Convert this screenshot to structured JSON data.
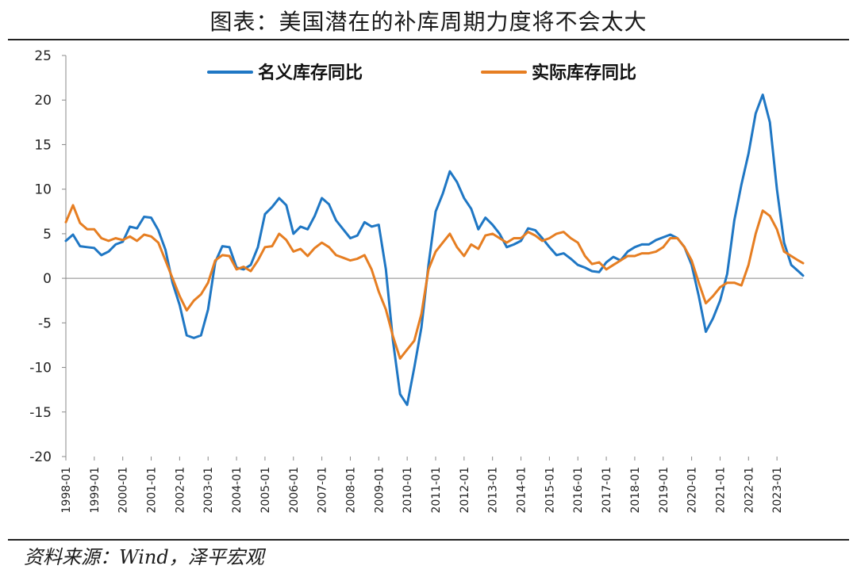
{
  "title": "图表：美国潜在的补库周期力度将不会太大",
  "source": "资料来源：Wind，泽平宏观",
  "chart_data": {
    "type": "line",
    "x_start": "1998-01",
    "x_end": "2023-12",
    "xticks": [
      "1998-01",
      "1999-01",
      "2000-01",
      "2001-01",
      "2002-01",
      "2003-01",
      "2004-01",
      "2005-01",
      "2006-01",
      "2007-01",
      "2008-01",
      "2009-01",
      "2010-01",
      "2011-01",
      "2012-01",
      "2013-01",
      "2014-01",
      "2015-01",
      "2016-01",
      "2017-01",
      "2018-01",
      "2019-01",
      "2020-01",
      "2021-01",
      "2022-01",
      "2023-01"
    ],
    "yticks": [
      25,
      20,
      15,
      10,
      5,
      0,
      -5,
      -10,
      -15,
      -20
    ],
    "ylim": [
      -20,
      25
    ],
    "legend_position": "top",
    "series": [
      {
        "name": "名义库存同比",
        "color": "#1f77c4",
        "points": [
          [
            "1998-01",
            4.2
          ],
          [
            "1998-04",
            4.9
          ],
          [
            "1998-07",
            3.6
          ],
          [
            "1998-10",
            3.5
          ],
          [
            "1999-01",
            3.4
          ],
          [
            "1999-04",
            2.6
          ],
          [
            "1999-07",
            3.0
          ],
          [
            "1999-10",
            3.8
          ],
          [
            "2000-01",
            4.1
          ],
          [
            "2000-04",
            5.8
          ],
          [
            "2000-07",
            5.6
          ],
          [
            "2000-10",
            6.9
          ],
          [
            "2001-01",
            6.8
          ],
          [
            "2001-04",
            5.4
          ],
          [
            "2001-07",
            3.2
          ],
          [
            "2001-10",
            -0.5
          ],
          [
            "2002-01",
            -3.0
          ],
          [
            "2002-04",
            -6.4
          ],
          [
            "2002-07",
            -6.7
          ],
          [
            "2002-10",
            -6.4
          ],
          [
            "2003-01",
            -3.5
          ],
          [
            "2003-04",
            1.8
          ],
          [
            "2003-07",
            3.6
          ],
          [
            "2003-10",
            3.5
          ],
          [
            "2004-01",
            1.2
          ],
          [
            "2004-04",
            1.0
          ],
          [
            "2004-07",
            1.5
          ],
          [
            "2004-10",
            3.5
          ],
          [
            "2005-01",
            7.2
          ],
          [
            "2005-04",
            8.0
          ],
          [
            "2005-07",
            9.0
          ],
          [
            "2005-10",
            8.2
          ],
          [
            "2006-01",
            5.0
          ],
          [
            "2006-04",
            5.8
          ],
          [
            "2006-07",
            5.5
          ],
          [
            "2006-10",
            7.0
          ],
          [
            "2007-01",
            9.0
          ],
          [
            "2007-04",
            8.3
          ],
          [
            "2007-07",
            6.5
          ],
          [
            "2007-10",
            5.5
          ],
          [
            "2008-01",
            4.5
          ],
          [
            "2008-04",
            4.8
          ],
          [
            "2008-07",
            6.3
          ],
          [
            "2008-10",
            5.8
          ],
          [
            "2009-01",
            6.0
          ],
          [
            "2009-04",
            1.0
          ],
          [
            "2009-07",
            -7.0
          ],
          [
            "2009-10",
            -13.0
          ],
          [
            "2010-01",
            -14.2
          ],
          [
            "2010-04",
            -10.0
          ],
          [
            "2010-07",
            -5.5
          ],
          [
            "2010-10",
            1.5
          ],
          [
            "2011-01",
            7.5
          ],
          [
            "2011-04",
            9.5
          ],
          [
            "2011-07",
            12.0
          ],
          [
            "2011-10",
            10.8
          ],
          [
            "2012-01",
            9.0
          ],
          [
            "2012-04",
            7.8
          ],
          [
            "2012-07",
            5.5
          ],
          [
            "2012-10",
            6.8
          ],
          [
            "2013-01",
            6.0
          ],
          [
            "2013-04",
            5.0
          ],
          [
            "2013-07",
            3.5
          ],
          [
            "2013-10",
            3.8
          ],
          [
            "2014-01",
            4.2
          ],
          [
            "2014-04",
            5.6
          ],
          [
            "2014-07",
            5.4
          ],
          [
            "2014-10",
            4.5
          ],
          [
            "2015-01",
            3.5
          ],
          [
            "2015-04",
            2.6
          ],
          [
            "2015-07",
            2.8
          ],
          [
            "2015-10",
            2.2
          ],
          [
            "2016-01",
            1.5
          ],
          [
            "2016-04",
            1.2
          ],
          [
            "2016-07",
            0.8
          ],
          [
            "2016-10",
            0.7
          ],
          [
            "2017-01",
            1.8
          ],
          [
            "2017-04",
            2.4
          ],
          [
            "2017-07",
            2.0
          ],
          [
            "2017-10",
            3.0
          ],
          [
            "2018-01",
            3.5
          ],
          [
            "2018-04",
            3.8
          ],
          [
            "2018-07",
            3.8
          ],
          [
            "2018-10",
            4.3
          ],
          [
            "2019-01",
            4.6
          ],
          [
            "2019-04",
            4.9
          ],
          [
            "2019-07",
            4.5
          ],
          [
            "2019-10",
            3.5
          ],
          [
            "2020-01",
            1.5
          ],
          [
            "2020-04",
            -2.0
          ],
          [
            "2020-07",
            -6.0
          ],
          [
            "2020-10",
            -4.5
          ],
          [
            "2021-01",
            -2.5
          ],
          [
            "2021-04",
            0.5
          ],
          [
            "2021-07",
            6.5
          ],
          [
            "2021-10",
            10.5
          ],
          [
            "2022-01",
            14.0
          ],
          [
            "2022-04",
            18.5
          ],
          [
            "2022-07",
            20.6
          ],
          [
            "2022-10",
            17.5
          ],
          [
            "2023-01",
            10.0
          ],
          [
            "2023-04",
            4.0
          ],
          [
            "2023-07",
            1.5
          ],
          [
            "2023-10",
            0.8
          ],
          [
            "2023-12",
            0.3
          ]
        ]
      },
      {
        "name": "实际库存同比",
        "color": "#e67e22",
        "points": [
          [
            "1998-01",
            6.3
          ],
          [
            "1998-04",
            8.2
          ],
          [
            "1998-07",
            6.2
          ],
          [
            "1998-10",
            5.5
          ],
          [
            "1999-01",
            5.5
          ],
          [
            "1999-04",
            4.5
          ],
          [
            "1999-07",
            4.2
          ],
          [
            "1999-10",
            4.5
          ],
          [
            "2000-01",
            4.3
          ],
          [
            "2000-04",
            4.7
          ],
          [
            "2000-07",
            4.2
          ],
          [
            "2000-10",
            4.9
          ],
          [
            "2001-01",
            4.7
          ],
          [
            "2001-04",
            4.0
          ],
          [
            "2001-07",
            2.0
          ],
          [
            "2001-10",
            0.0
          ],
          [
            "2002-01",
            -2.0
          ],
          [
            "2002-04",
            -3.6
          ],
          [
            "2002-07",
            -2.5
          ],
          [
            "2002-10",
            -1.8
          ],
          [
            "2003-01",
            -0.5
          ],
          [
            "2003-04",
            2.0
          ],
          [
            "2003-07",
            2.6
          ],
          [
            "2003-10",
            2.5
          ],
          [
            "2004-01",
            1.0
          ],
          [
            "2004-04",
            1.3
          ],
          [
            "2004-07",
            0.8
          ],
          [
            "2004-10",
            2.0
          ],
          [
            "2005-01",
            3.5
          ],
          [
            "2005-04",
            3.6
          ],
          [
            "2005-07",
            5.0
          ],
          [
            "2005-10",
            4.3
          ],
          [
            "2006-01",
            3.0
          ],
          [
            "2006-04",
            3.3
          ],
          [
            "2006-07",
            2.5
          ],
          [
            "2006-10",
            3.4
          ],
          [
            "2007-01",
            4.0
          ],
          [
            "2007-04",
            3.5
          ],
          [
            "2007-07",
            2.6
          ],
          [
            "2007-10",
            2.3
          ],
          [
            "2008-01",
            2.0
          ],
          [
            "2008-04",
            2.2
          ],
          [
            "2008-07",
            2.6
          ],
          [
            "2008-10",
            1.0
          ],
          [
            "2009-01",
            -1.5
          ],
          [
            "2009-04",
            -3.5
          ],
          [
            "2009-07",
            -6.5
          ],
          [
            "2009-10",
            -9.0
          ],
          [
            "2010-01",
            -8.0
          ],
          [
            "2010-04",
            -7.0
          ],
          [
            "2010-07",
            -4.0
          ],
          [
            "2010-10",
            1.0
          ],
          [
            "2011-01",
            3.0
          ],
          [
            "2011-04",
            4.0
          ],
          [
            "2011-07",
            5.0
          ],
          [
            "2011-10",
            3.5
          ],
          [
            "2012-01",
            2.5
          ],
          [
            "2012-04",
            3.8
          ],
          [
            "2012-07",
            3.3
          ],
          [
            "2012-10",
            4.8
          ],
          [
            "2013-01",
            5.0
          ],
          [
            "2013-04",
            4.5
          ],
          [
            "2013-07",
            4.0
          ],
          [
            "2013-10",
            4.5
          ],
          [
            "2014-01",
            4.5
          ],
          [
            "2014-04",
            5.2
          ],
          [
            "2014-07",
            4.8
          ],
          [
            "2014-10",
            4.2
          ],
          [
            "2015-01",
            4.5
          ],
          [
            "2015-04",
            5.0
          ],
          [
            "2015-07",
            5.2
          ],
          [
            "2015-10",
            4.5
          ],
          [
            "2016-01",
            4.0
          ],
          [
            "2016-04",
            2.5
          ],
          [
            "2016-07",
            1.6
          ],
          [
            "2016-10",
            1.8
          ],
          [
            "2017-01",
            1.0
          ],
          [
            "2017-04",
            1.5
          ],
          [
            "2017-07",
            2.0
          ],
          [
            "2017-10",
            2.5
          ],
          [
            "2018-01",
            2.5
          ],
          [
            "2018-04",
            2.8
          ],
          [
            "2018-07",
            2.8
          ],
          [
            "2018-10",
            3.0
          ],
          [
            "2019-01",
            3.5
          ],
          [
            "2019-04",
            4.5
          ],
          [
            "2019-07",
            4.5
          ],
          [
            "2019-10",
            3.5
          ],
          [
            "2020-01",
            2.0
          ],
          [
            "2020-04",
            -0.5
          ],
          [
            "2020-07",
            -2.8
          ],
          [
            "2020-10",
            -2.0
          ],
          [
            "2021-01",
            -1.0
          ],
          [
            "2021-04",
            -0.5
          ],
          [
            "2021-07",
            -0.5
          ],
          [
            "2021-10",
            -0.8
          ],
          [
            "2022-01",
            1.5
          ],
          [
            "2022-04",
            5.0
          ],
          [
            "2022-07",
            7.6
          ],
          [
            "2022-10",
            7.0
          ],
          [
            "2023-01",
            5.5
          ],
          [
            "2023-04",
            3.0
          ],
          [
            "2023-07",
            2.5
          ],
          [
            "2023-10",
            2.0
          ],
          [
            "2023-12",
            1.7
          ]
        ]
      }
    ]
  }
}
